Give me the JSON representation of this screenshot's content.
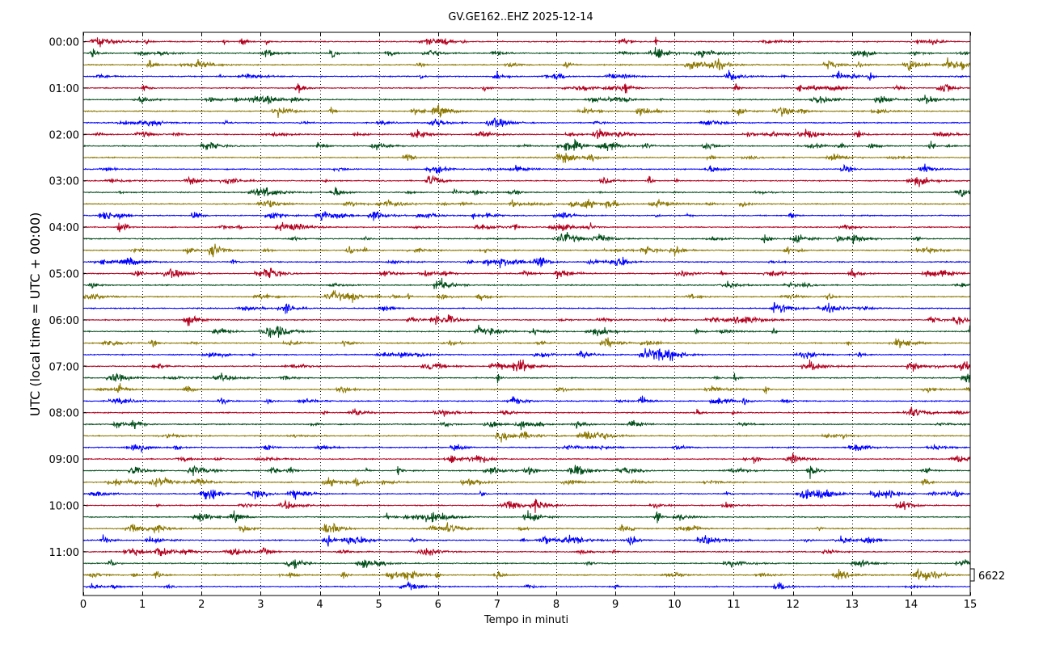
{
  "chart_data": {
    "type": "line",
    "title": "GV.GE162..EHZ 2025-12-14",
    "xlabel": "Tempo in minuti",
    "ylabel": "UTC (local time = UTC + 00:00)",
    "x_ticks": [
      0,
      1,
      2,
      3,
      4,
      5,
      6,
      7,
      8,
      9,
      10,
      11,
      12,
      13,
      14,
      15
    ],
    "xlim": [
      0,
      15
    ],
    "y_tick_labels": [
      "00:00",
      "01:00",
      "02:00",
      "03:00",
      "04:00",
      "05:00",
      "06:00",
      "07:00",
      "08:00",
      "09:00",
      "10:00",
      "11:00"
    ],
    "trace_count": 48,
    "trace_interval_minutes": 15,
    "trace_colors": [
      "#b2001e",
      "#004d19",
      "#8c7800",
      "#0000ff"
    ],
    "grid_x_dotted": true,
    "scale_label": "6622"
  }
}
